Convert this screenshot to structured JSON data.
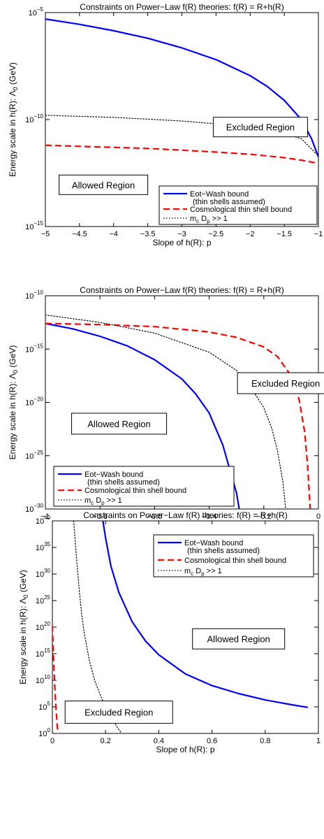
{
  "chart_data": [
    {
      "type": "line",
      "title": "Constraints on Power−Law f(R) theories: f(R) = R+h(R)",
      "xlabel": "Slope of h(R): p",
      "ylabel": "Energy scale in h(R): Λ",
      "ylabel_sub": "0",
      "ylabel_unit": " (GeV)",
      "xlim": [
        -5,
        -1
      ],
      "ylim_exp": [
        -15,
        -5
      ],
      "yscale": "log",
      "xticks": [
        -5,
        -4.5,
        -4,
        -3.5,
        -3,
        -2.5,
        -2,
        -1.5,
        -1
      ],
      "xtick_labels": [
        "−5",
        "−4.5",
        "−4",
        "−3.5",
        "−3",
        "−2.5",
        "−2",
        "−1.5",
        "−1"
      ],
      "yticks_exp": [
        -15,
        -10,
        -5
      ],
      "ytick_labels": [
        "−15",
        "−10",
        "−5"
      ],
      "legend_position": "bottom-right",
      "series": [
        {
          "name": "Eot−Wash bound",
          "name2": "(thin shells assumed)",
          "color": "#0000ff",
          "dash": "solid",
          "x": [
            -5,
            -4.5,
            -4,
            -3.5,
            -3,
            -2.5,
            -2,
            -1.75,
            -1.5,
            -1.25,
            -1.1,
            -1
          ],
          "log10y": [
            -5.3,
            -5.55,
            -5.85,
            -6.2,
            -6.65,
            -7.2,
            -7.95,
            -8.45,
            -9.1,
            -10.0,
            -10.9,
            -11.75
          ]
        },
        {
          "name": "Cosmological thin shell bound",
          "color": "#ff0000",
          "dash": "dashed",
          "x": [
            -5,
            -4.5,
            -4,
            -3.5,
            -3,
            -2.5,
            -2,
            -1.5,
            -1.25,
            -1
          ],
          "log10y": [
            -11.2,
            -11.25,
            -11.3,
            -11.35,
            -11.43,
            -11.52,
            -11.62,
            -11.78,
            -11.9,
            -12.05
          ]
        },
        {
          "name": "m",
          "name_sub1": "c",
          "name_mid": " D",
          "name_sub2": "p",
          "name_tail": " >> 1",
          "color": "#000000",
          "dash": "dotted",
          "x": [
            -5,
            -4.5,
            -4,
            -3.5,
            -3,
            -2.5,
            -2,
            -1.75,
            -1.5,
            -1.25,
            -1
          ],
          "log10y": [
            -9.8,
            -9.85,
            -9.9,
            -9.98,
            -10.07,
            -10.2,
            -10.35,
            -10.5,
            -10.65,
            -10.9,
            -11.7
          ]
        }
      ],
      "annotations": [
        {
          "text": "Excluded Region",
          "x": -1.85,
          "log10y": -10.35
        },
        {
          "text": "Allowed Region",
          "x": -4.15,
          "log10y": -13.05
        }
      ]
    },
    {
      "type": "line",
      "title": "Constraints on Power−Law f(R) theories: f(R) = R+h(R)",
      "xlabel": "Slope of h(R): p",
      "ylabel": "Energy scale in h(R): Λ",
      "ylabel_sub": "0",
      "ylabel_unit": " (GeV)",
      "xlim": [
        -1,
        0
      ],
      "ylim_exp": [
        -30,
        -10
      ],
      "yscale": "log",
      "xticks": [
        -1,
        -0.8,
        -0.6,
        -0.4,
        -0.2,
        0
      ],
      "xtick_labels": [
        "−1",
        "−0.8",
        "−0.6",
        "−0.4",
        "−0.2",
        "0"
      ],
      "yticks_exp": [
        -30,
        -25,
        -20,
        -15,
        -10
      ],
      "ytick_labels": [
        "−30",
        "−25",
        "−20",
        "−15",
        "−10"
      ],
      "legend_position": "bottom-left",
      "series": [
        {
          "name": "Eot−Wash bound",
          "name2": "(thin shells assumed)",
          "color": "#0000ff",
          "dash": "solid",
          "x": [
            -1,
            -0.9,
            -0.8,
            -0.7,
            -0.6,
            -0.5,
            -0.45,
            -0.4,
            -0.35,
            -0.3,
            -0.29
          ],
          "log10y": [
            -12.6,
            -13.1,
            -13.8,
            -14.7,
            -16.0,
            -17.8,
            -19.2,
            -21.0,
            -24.0,
            -28.5,
            -30
          ]
        },
        {
          "name": "Cosmological thin shell bound",
          "color": "#ff0000",
          "dash": "dashed",
          "x": [
            -1,
            -0.8,
            -0.6,
            -0.4,
            -0.3,
            -0.2,
            -0.15,
            -0.1,
            -0.07,
            -0.05,
            -0.04,
            -0.03
          ],
          "log10y": [
            -12.6,
            -12.7,
            -12.9,
            -13.4,
            -13.9,
            -14.8,
            -15.7,
            -17.5,
            -19.8,
            -22.8,
            -25.8,
            -30
          ]
        },
        {
          "name": "m",
          "name_sub1": "c",
          "name_mid": " D",
          "name_sub2": "p",
          "name_tail": " >> 1",
          "color": "#000000",
          "dash": "dotted",
          "x": [
            -1,
            -0.8,
            -0.6,
            -0.4,
            -0.3,
            -0.25,
            -0.2,
            -0.17,
            -0.15,
            -0.13,
            -0.12
          ],
          "log10y": [
            -11.8,
            -12.5,
            -13.5,
            -15.3,
            -17.0,
            -18.5,
            -20.5,
            -22.5,
            -24.5,
            -27.5,
            -30
          ]
        }
      ],
      "annotations": [
        {
          "text": "Excluded Region",
          "x": -0.12,
          "log10y": -18.2
        },
        {
          "text": "Allowed Region",
          "x": -0.73,
          "log10y": -22.0
        }
      ]
    },
    {
      "type": "line",
      "title": "Constraints on Power−Law f(R) theories: f(R) = R+h(R)",
      "xlabel": "Slope of h(R): p",
      "ylabel": "Energy scale in h(R): Λ",
      "ylabel_sub": "0",
      "ylabel_unit": " (GeV)",
      "xlim": [
        0,
        1
      ],
      "ylim_exp": [
        0,
        40
      ],
      "yscale": "log",
      "xticks": [
        0,
        0.2,
        0.4,
        0.6,
        0.8,
        1
      ],
      "xtick_labels": [
        "0",
        "0.2",
        "0.4",
        "0.6",
        "0.8",
        "1"
      ],
      "yticks_exp": [
        0,
        5,
        10,
        15,
        20,
        25,
        30,
        35,
        40
      ],
      "ytick_labels": [
        "0",
        "5",
        "10",
        "15",
        "20",
        "25",
        "30",
        "35",
        "40"
      ],
      "legend_position": "top-right",
      "series": [
        {
          "name": "Eot−Wash bound",
          "name2": "(thin shells assumed)",
          "color": "#0000ff",
          "dash": "solid",
          "x": [
            0.19,
            0.2,
            0.22,
            0.25,
            0.3,
            0.35,
            0.4,
            0.5,
            0.6,
            0.7,
            0.8,
            0.9,
            0.96
          ],
          "log10y": [
            40,
            36.8,
            31.5,
            26.5,
            21.0,
            17.4,
            14.8,
            11.2,
            9.0,
            7.5,
            6.3,
            5.4,
            4.9
          ]
        },
        {
          "name": "Cosmological thin shell bound",
          "color": "#ff0000",
          "dash": "dashed",
          "x": [
            0,
            0.003,
            0.006,
            0.01,
            0.014,
            0.018,
            0.021
          ],
          "log10y": [
            20.3,
            16.0,
            12.0,
            8.0,
            4.5,
            1.6,
            0
          ]
        },
        {
          "name": "m",
          "name_sub1": "c",
          "name_mid": " D",
          "name_sub2": "p",
          "name_tail": " >> 1",
          "color": "#000000",
          "dash": "dotted",
          "x": [
            0.08,
            0.09,
            0.1,
            0.11,
            0.12,
            0.14,
            0.16,
            0.19,
            0.22,
            0.26
          ],
          "log10y": [
            40,
            33.5,
            27.5,
            22.5,
            18.8,
            13.5,
            9.8,
            6.0,
            3.0,
            0
          ]
        }
      ],
      "annotations": [
        {
          "text": "Allowed Region",
          "x": 0.7,
          "log10y": 17.8
        },
        {
          "text": "Excluded Region",
          "x": 0.25,
          "log10y": 4.0
        }
      ]
    }
  ]
}
